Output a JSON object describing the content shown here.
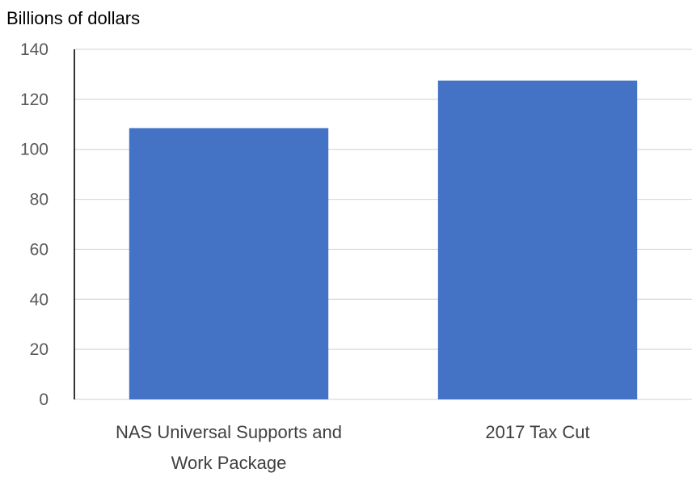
{
  "chart_data": {
    "type": "bar",
    "ylabel": "Billions of dollars",
    "categories": [
      [
        "NAS Universal Supports and",
        "Work Package"
      ],
      [
        "2017 Tax Cut"
      ]
    ],
    "values": [
      108.5,
      127.5
    ],
    "ylim": [
      0,
      140
    ],
    "yticks": [
      0,
      20,
      40,
      60,
      80,
      100,
      120,
      140
    ],
    "grid": true,
    "legend": "none",
    "colors": {
      "bar": "#4472C4",
      "grid": "#D9D9D9",
      "axis": "#000000"
    }
  }
}
